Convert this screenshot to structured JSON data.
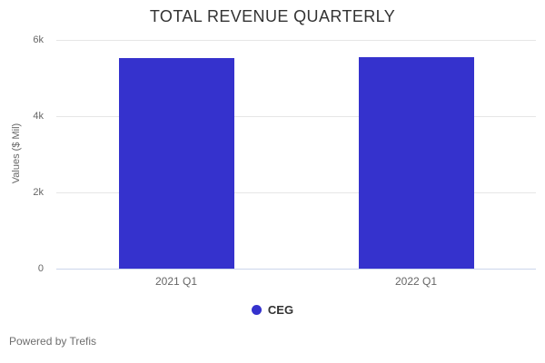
{
  "chart_data": {
    "type": "bar",
    "title": "TOTAL REVENUE QUARTERLY",
    "categories": [
      "2021 Q1",
      "2022 Q1"
    ],
    "series": [
      {
        "name": "CEG",
        "values": [
          5525,
          5550
        ],
        "color": "#3532cd"
      }
    ],
    "xlabel": "",
    "ylabel": "Values ($ Mil)",
    "ylim": [
      0,
      6000
    ],
    "yticks": [
      {
        "value": 0,
        "label": "0"
      },
      {
        "value": 2000,
        "label": "2k"
      },
      {
        "value": 4000,
        "label": "4k"
      },
      {
        "value": 6000,
        "label": "6k"
      }
    ],
    "grid": true,
    "legend_position": "bottom"
  },
  "legend": {
    "items": [
      {
        "label": "CEG",
        "color": "#3532cd"
      }
    ]
  },
  "footer": {
    "text": "Powered by Trefis"
  },
  "colors": {
    "bar": "#3532cd",
    "gridline": "#e6e6e6",
    "axis_line": "#ccd6eb",
    "title_text": "#333333",
    "label_text": "#666666",
    "legend_text": "#333333",
    "footer_text": "#6e6e6e",
    "background": "#ffffff"
  }
}
